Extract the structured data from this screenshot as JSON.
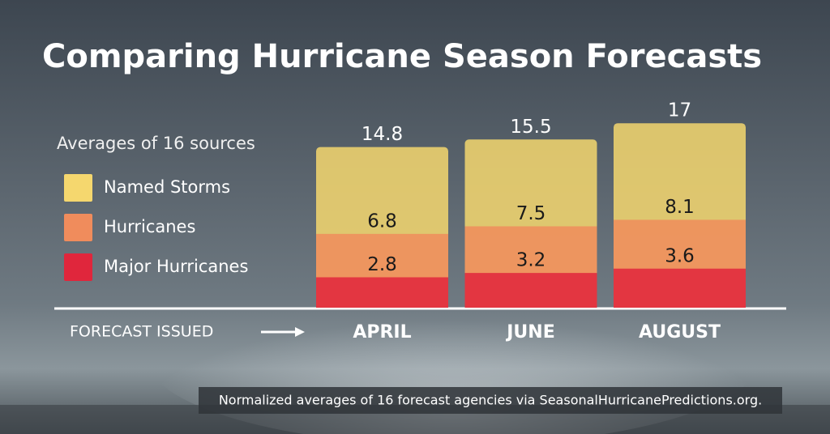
{
  "chart_data": {
    "type": "bar",
    "title": "Comparing Hurricane Season Forecasts",
    "subtitle": "Averages of 16 sources",
    "x_label": "FORECAST ISSUED",
    "categories": [
      "APRIL",
      "JUNE",
      "AUGUST"
    ],
    "series": [
      {
        "name": "Named Storms",
        "color": "#f5d76e",
        "values": [
          14.8,
          15.5,
          17
        ]
      },
      {
        "name": "Hurricanes",
        "color": "#f08c5c",
        "values": [
          6.8,
          7.5,
          8.1
        ]
      },
      {
        "name": "Major Hurricanes",
        "color": "#e0263c",
        "values": [
          2.8,
          3.2,
          3.6
        ]
      }
    ],
    "source": "Normalized averages of 16 forecast agencies via SeasonalHurricanePredictions.org."
  }
}
